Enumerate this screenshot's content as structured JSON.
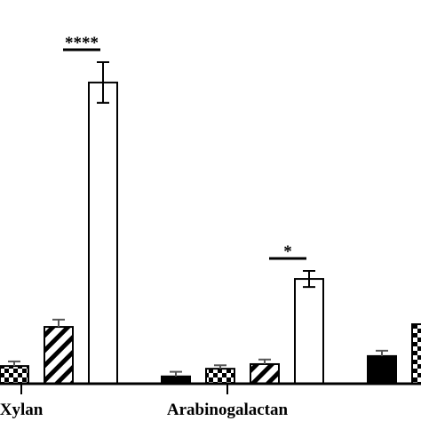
{
  "chart_data": {
    "type": "bar",
    "categories": [
      "Xylan",
      "Arabinogalactan",
      null
    ],
    "ylim": [
      0,
      100
    ],
    "series": [
      {
        "color": "#000000",
        "pattern": "solid",
        "values": [
          null,
          1.9,
          7.2
        ],
        "errors": [
          null,
          1.2,
          1.4
        ]
      },
      {
        "color": "#000000",
        "pattern": "checker",
        "values": [
          4.6,
          3.9,
          15.5
        ],
        "errors": [
          1.2,
          0.9,
          null
        ]
      },
      {
        "color": "#000000",
        "pattern": "diagonal",
        "values": [
          14.8,
          5.1,
          null
        ],
        "errors": [
          1.9,
          1.2,
          null
        ]
      },
      {
        "color": "#ffffff",
        "pattern": "open",
        "values": [
          78.5,
          27.3,
          null
        ],
        "errors": [
          5.3,
          2.1,
          null
        ]
      }
    ],
    "annotations": [
      {
        "text": "****",
        "category": 0
      },
      {
        "text": "*",
        "category": 1
      }
    ]
  }
}
